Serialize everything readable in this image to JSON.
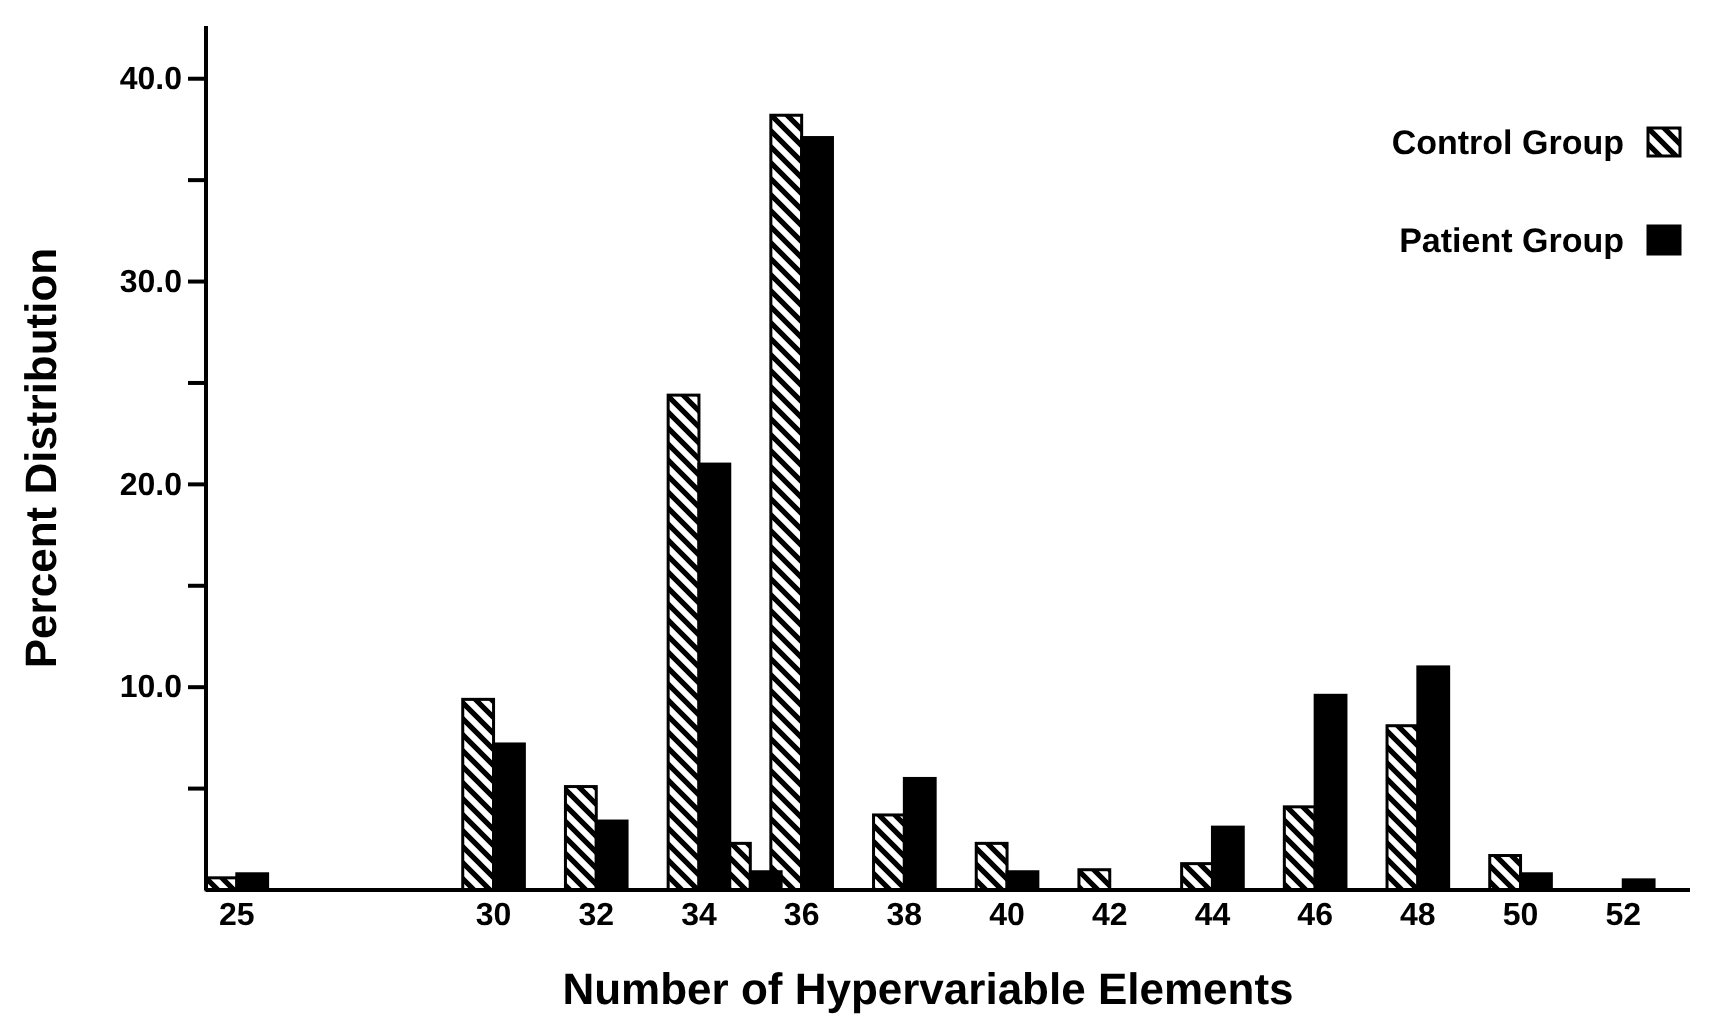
{
  "chart_data": {
    "type": "bar",
    "xlabel": "Number of Hypervariable Elements",
    "ylabel": "Percent Distribution",
    "x": [
      25,
      30,
      32,
      34,
      35,
      36,
      38,
      40,
      42,
      44,
      46,
      48,
      50,
      52
    ],
    "series": [
      {
        "name": "Control Group",
        "color": "#000000",
        "values": [
          0.6,
          9.4,
          5.1,
          24.4,
          2.3,
          38.2,
          3.7,
          2.3,
          1.0,
          1.3,
          4.1,
          8.1,
          1.7,
          null
        ]
      },
      {
        "name": "Patient Group",
        "color": "#000000",
        "values": [
          0.8,
          7.2,
          3.4,
          21.0,
          0.9,
          37.1,
          5.5,
          0.9,
          null,
          3.1,
          9.6,
          11.0,
          0.8,
          0.5
        ]
      }
    ],
    "xlim": [
      24.4,
      53.3
    ],
    "xticks": [
      25,
      30,
      32,
      34,
      36,
      38,
      40,
      42,
      44,
      46,
      48,
      50,
      52
    ],
    "ylim": [
      0,
      42.6
    ],
    "yticks": [
      {
        "value": 5,
        "label": null
      },
      {
        "value": 10,
        "label": "10.0"
      },
      {
        "value": 15,
        "label": null
      },
      {
        "value": 20,
        "label": "20.0"
      },
      {
        "value": 25,
        "label": null
      },
      {
        "value": 30,
        "label": "30.0"
      },
      {
        "value": 35,
        "label": null
      },
      {
        "value": 40,
        "label": "40.0"
      }
    ],
    "legend": "top right",
    "grid": false
  }
}
